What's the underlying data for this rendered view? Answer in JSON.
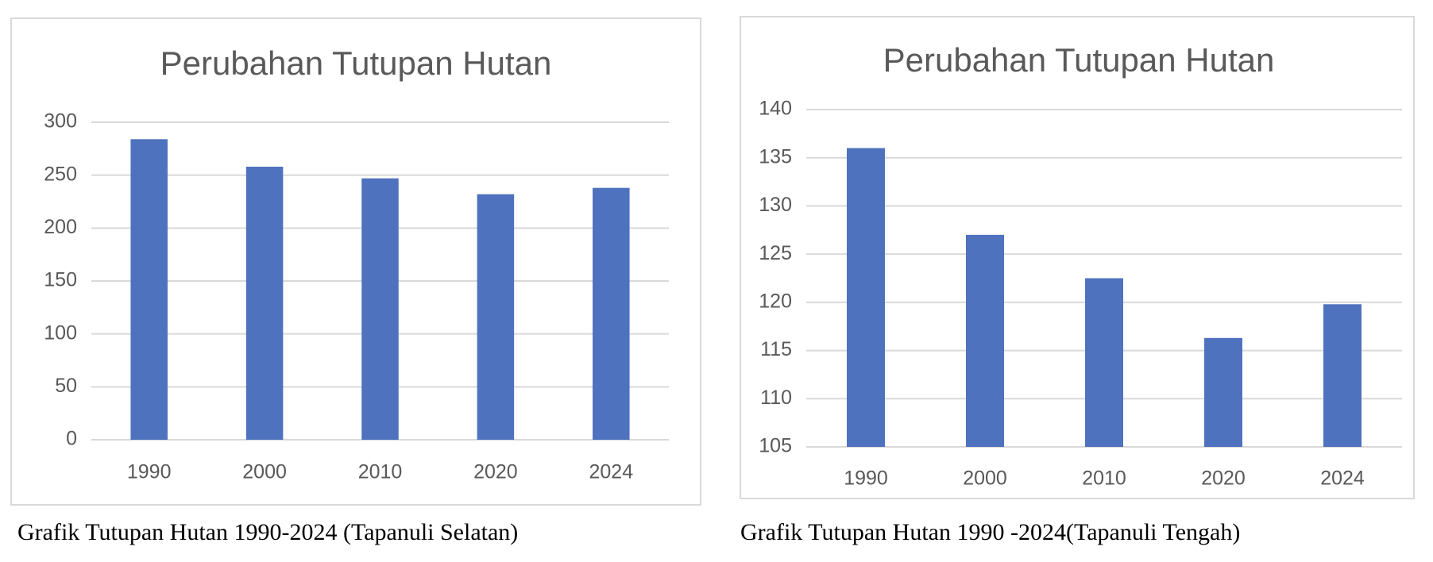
{
  "chart_data": [
    {
      "type": "bar",
      "title": "Perubahan Tutupan Hutan",
      "categories": [
        "1990",
        "2000",
        "2010",
        "2020",
        "2024"
      ],
      "values": [
        284,
        258,
        247,
        232,
        238
      ],
      "color": "#4f72be",
      "ylim": [
        0,
        300
      ],
      "yticks": [
        0,
        50,
        100,
        150,
        200,
        250,
        300
      ],
      "grid": true,
      "caption": "Grafik Tutupan Hutan 1990-2024 (Tapanuli Selatan)"
    },
    {
      "type": "bar",
      "title": "Perubahan Tutupan Hutan",
      "categories": [
        "1990",
        "2000",
        "2010",
        "2020",
        "2024"
      ],
      "values": [
        136,
        127,
        122.5,
        116.3,
        119.8
      ],
      "color": "#4f72be",
      "ylim": [
        105,
        140
      ],
      "yticks": [
        105,
        110,
        115,
        120,
        125,
        130,
        135,
        140
      ],
      "grid": true,
      "caption": "Grafik Tutupan Hutan 1990 -2024(Tapanuli Tengah)"
    }
  ]
}
